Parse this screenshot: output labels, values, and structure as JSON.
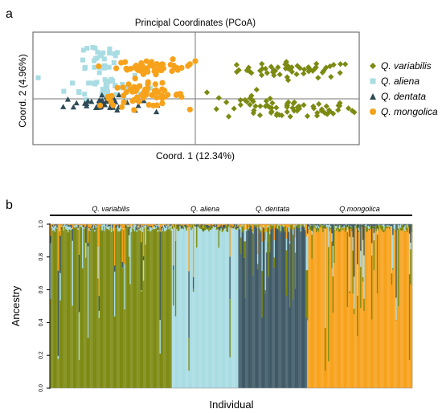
{
  "panels": {
    "a_letter": "a",
    "b_letter": "b"
  },
  "chart_data": [
    {
      "type": "scatter",
      "title": "Principal Coordinates (PCoA)",
      "xlabel": "Coord. 1 (12.34%)",
      "ylabel": "Coord. 2 (4.96%)",
      "xlim": [
        -1.0,
        1.0
      ],
      "ylim": [
        -1.0,
        1.0
      ],
      "grid": false,
      "legend_placement": "right",
      "series": [
        {
          "name": "Q. variabilis",
          "marker": "diamond",
          "color": "#7c8a12",
          "clusters": [
            {
              "cx": 0.62,
              "cy": 0.33,
              "sx": 0.18,
              "sy": 0.07,
              "n": 55
            },
            {
              "cx": 0.58,
              "cy": -0.38,
              "sx": 0.2,
              "sy": 0.08,
              "n": 60
            },
            {
              "cx": 0.25,
              "cy": -0.2,
              "sx": 0.08,
              "sy": 0.12,
              "n": 12
            }
          ]
        },
        {
          "name": "Q. aliena",
          "marker": "square",
          "color": "#a9dce3",
          "clusters": [
            {
              "cx": -0.6,
              "cy": 0.55,
              "sx": 0.09,
              "sy": 0.16,
              "n": 28
            },
            {
              "cx": -0.55,
              "cy": 0.05,
              "sx": 0.12,
              "sy": 0.12,
              "n": 35
            }
          ]
        },
        {
          "name": "Q. dentata",
          "marker": "triangle",
          "color": "#2e4a56",
          "clusters": [
            {
              "cx": -0.57,
              "cy": -0.28,
              "sx": 0.12,
              "sy": 0.07,
              "n": 45
            }
          ]
        },
        {
          "name": "Q. mongolica",
          "marker": "circle",
          "color": "#f7a21b",
          "clusters": [
            {
              "cx": -0.25,
              "cy": 0.38,
              "sx": 0.12,
              "sy": 0.06,
              "n": 50
            },
            {
              "cx": -0.33,
              "cy": -0.12,
              "sx": 0.13,
              "sy": 0.1,
              "n": 60
            }
          ]
        }
      ]
    },
    {
      "type": "bar",
      "stacked": true,
      "xlabel": "Individual",
      "ylabel": "Ancestry",
      "ylim": [
        0,
        1
      ],
      "yticks": [
        "0.0",
        "0.2",
        "0.4",
        "0.6",
        "0.8",
        "1.0"
      ],
      "ytick_values": [
        0,
        0.2,
        0.4,
        0.6,
        0.8,
        1.0
      ],
      "clusters": [
        "K1",
        "K2",
        "K3",
        "K4"
      ],
      "cluster_colors": [
        "#7c8a12",
        "#a9dce3",
        "#3f5a66",
        "#f7a21b"
      ],
      "groups": [
        {
          "name": "Q. variabilis",
          "n_individuals": 110,
          "main_cluster": 0,
          "label_style": "italic"
        },
        {
          "name": "Q. aliena",
          "n_individuals": 60,
          "main_cluster": 1,
          "label_style": "italic"
        },
        {
          "name": "Q. dentata",
          "n_individuals": 62,
          "main_cluster": 2,
          "label_style": "italic"
        },
        {
          "name": "Q.mongolica",
          "n_individuals": 95,
          "main_cluster": 3,
          "label_style": "italic"
        }
      ],
      "admixture_profile": "individuals mostly assigned to their group's main cluster with low-level admixture from others"
    }
  ]
}
